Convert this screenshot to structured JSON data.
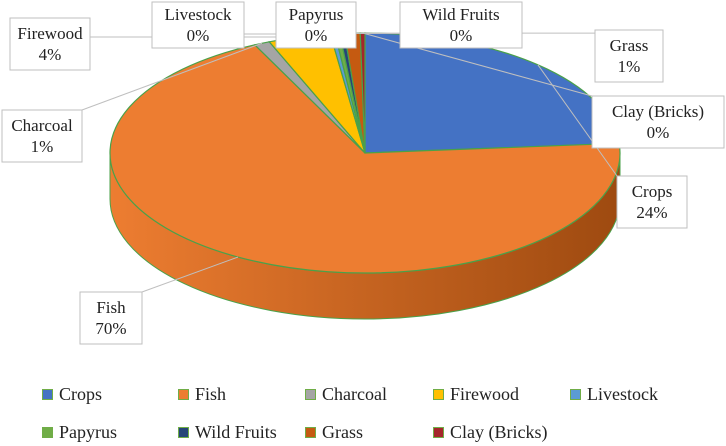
{
  "chart_data": {
    "type": "pie",
    "style": "3d-pie",
    "legend_position": "bottom",
    "slices": [
      {
        "name": "Crops",
        "value": 24,
        "label": "24%",
        "color": "#4472c4",
        "darkColor": "#2f5597"
      },
      {
        "name": "Fish",
        "value": 70,
        "label": "70%",
        "color": "#ed7d31",
        "darkColor": "#9e4a10"
      },
      {
        "name": "Charcoal",
        "value": 1,
        "label": "1%",
        "color": "#a5a5a5",
        "darkColor": "#6e6e6e"
      },
      {
        "name": "Firewood",
        "value": 4,
        "label": "4%",
        "color": "#ffc000",
        "darkColor": "#b38600"
      },
      {
        "name": "Livestock",
        "value": 0.3,
        "label": "0%",
        "color": "#5b9bd5",
        "darkColor": "#3a6fa0"
      },
      {
        "name": "Papyrus",
        "value": 0.3,
        "label": "0%",
        "color": "#70ad47",
        "darkColor": "#4e7a31"
      },
      {
        "name": "Wild Fruits",
        "value": 0.3,
        "label": "0%",
        "color": "#264478",
        "darkColor": "#18304f"
      },
      {
        "name": "Grass",
        "value": 1,
        "label": "1%",
        "color": "#c55a11",
        "darkColor": "#7f3a0b"
      },
      {
        "name": "Clay (Bricks)",
        "value": 0.3,
        "label": "0%",
        "color": "#a5262b",
        "darkColor": "#6b181c"
      }
    ]
  }
}
